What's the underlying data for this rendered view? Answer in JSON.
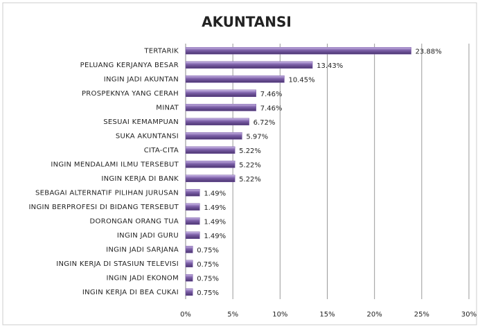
{
  "chart_data": {
    "type": "bar",
    "orientation": "horizontal",
    "title": "AKUNTANSI",
    "categories": [
      "TERTARIK",
      "PELUANG KERJANYA BESAR",
      "INGIN JADI AKUNTAN",
      "PROSPEKNYA YANG CERAH",
      "MINAT",
      "SESUAI KEMAMPUAN",
      "SUKA AKUNTANSI",
      "CITA-CITA",
      "INGIN MENDALAMI ILMU TERSEBUT",
      "INGIN KERJA DI BANK",
      "SEBAGAI ALTERNATIF PILIHAN JURUSAN",
      "INGIN BERPROFESI DI BIDANG TERSEBUT",
      "DORONGAN ORANG TUA",
      "INGIN JADI GURU",
      "INGIN JADI SARJANA",
      "INGIN KERJA DI STASIUN TELEVISI",
      "INGIN JADI EKONOM",
      "INGIN KERJA DI BEA CUKAI"
    ],
    "values": [
      23.88,
      13.43,
      10.45,
      7.46,
      7.46,
      6.72,
      5.97,
      5.22,
      5.22,
      5.22,
      1.49,
      1.49,
      1.49,
      1.49,
      0.75,
      0.75,
      0.75,
      0.75
    ],
    "value_labels": [
      "23.88%",
      "13.43%",
      "10.45%",
      "7.46%",
      "7.46%",
      "6.72%",
      "5.97%",
      "5.22%",
      "5.22%",
      "5.22%",
      "1.49%",
      "1.49%",
      "1.49%",
      "1.49%",
      "0.75%",
      "0.75%",
      "0.75%",
      "0.75%"
    ],
    "color": "#7b5ea7",
    "xlim": [
      0,
      30
    ],
    "xticks": [
      {
        "value": 0,
        "label": "0%"
      },
      {
        "value": 5,
        "label": "5%"
      },
      {
        "value": 10,
        "label": "10%"
      },
      {
        "value": 15,
        "label": "15%"
      },
      {
        "value": 20,
        "label": "20%"
      },
      {
        "value": 25,
        "label": "25%"
      },
      {
        "value": 30,
        "label": "30%"
      }
    ],
    "grid": true
  }
}
